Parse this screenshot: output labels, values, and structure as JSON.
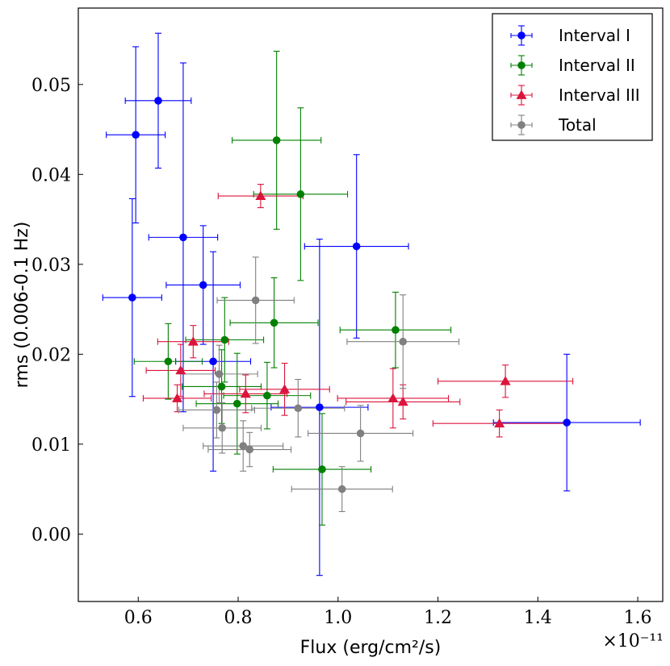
{
  "chart_data": {
    "type": "scatter",
    "title": "",
    "xlabel": "Flux (erg/cm²/s)",
    "ylabel": "rms (0.006-0.1 Hz)",
    "x_multiplier": "×10⁻¹¹",
    "xlim": [
      0.48,
      1.65
    ],
    "ylim": [
      -0.0075,
      0.0585
    ],
    "xticks": [
      0.6,
      0.8,
      1.0,
      1.2,
      1.4,
      1.6
    ],
    "xtick_labels": [
      "0.6",
      "0.8",
      "1.0",
      "1.2",
      "1.4",
      "1.6"
    ],
    "yticks": [
      0.0,
      0.01,
      0.02,
      0.03,
      0.04,
      0.05
    ],
    "ytick_labels": [
      "0.00",
      "0.01",
      "0.02",
      "0.03",
      "0.04",
      "0.05"
    ],
    "grid": false,
    "legend_position": "top-right",
    "series": [
      {
        "name": "Interval I",
        "color": "#0000ff",
        "marker": "circle",
        "points": [
          {
            "x": 0.595,
            "y": 0.0444,
            "xerr": 0.059,
            "yerr": 0.0098
          },
          {
            "x": 0.64,
            "y": 0.0482,
            "xerr": 0.066,
            "yerr": 0.0075
          },
          {
            "x": 0.588,
            "y": 0.0263,
            "xerr": 0.059,
            "yerr": 0.011
          },
          {
            "x": 0.69,
            "y": 0.033,
            "xerr": 0.069,
            "yerr": 0.0194
          },
          {
            "x": 0.73,
            "y": 0.0277,
            "xerr": 0.074,
            "yerr": 0.0066
          },
          {
            "x": 0.75,
            "y": 0.0192,
            "xerr": 0.075,
            "yerr": 0.0122
          },
          {
            "x": 0.963,
            "y": 0.0141,
            "xerr": 0.097,
            "yerr": 0.0187
          },
          {
            "x": 1.037,
            "y": 0.032,
            "xerr": 0.104,
            "yerr": 0.0102
          },
          {
            "x": 1.458,
            "y": 0.0124,
            "xerr": 0.147,
            "yerr": 0.0076
          }
        ]
      },
      {
        "name": "Interval II",
        "color": "#008000",
        "marker": "circle",
        "points": [
          {
            "x": 0.877,
            "y": 0.0438,
            "xerr": 0.089,
            "yerr": 0.0099
          },
          {
            "x": 0.925,
            "y": 0.0378,
            "xerr": 0.094,
            "yerr": 0.0096
          },
          {
            "x": 0.872,
            "y": 0.0235,
            "xerr": 0.088,
            "yerr": 0.005
          },
          {
            "x": 1.115,
            "y": 0.0227,
            "xerr": 0.111,
            "yerr": 0.0042
          },
          {
            "x": 0.66,
            "y": 0.0192,
            "xerr": 0.068,
            "yerr": 0.0042
          },
          {
            "x": 0.773,
            "y": 0.0216,
            "xerr": 0.078,
            "yerr": 0.0047
          },
          {
            "x": 0.767,
            "y": 0.0164,
            "xerr": 0.079,
            "yerr": 0.0041
          },
          {
            "x": 0.798,
            "y": 0.0145,
            "xerr": 0.082,
            "yerr": 0.0056
          },
          {
            "x": 0.858,
            "y": 0.0154,
            "xerr": 0.087,
            "yerr": 0.0037
          },
          {
            "x": 0.968,
            "y": 0.0072,
            "xerr": 0.098,
            "yerr": 0.0062
          }
        ]
      },
      {
        "name": "Interval III",
        "color": "#dc143c",
        "marker": "triangle",
        "points": [
          {
            "x": 0.845,
            "y": 0.0376,
            "xerr": 0.085,
            "yerr": 0.0013
          },
          {
            "x": 0.71,
            "y": 0.0214,
            "xerr": 0.071,
            "yerr": 0.0018
          },
          {
            "x": 0.685,
            "y": 0.0182,
            "xerr": 0.069,
            "yerr": 0.0029
          },
          {
            "x": 0.678,
            "y": 0.0151,
            "xerr": 0.068,
            "yerr": 0.0015
          },
          {
            "x": 0.815,
            "y": 0.0156,
            "xerr": 0.083,
            "yerr": 0.0021
          },
          {
            "x": 0.893,
            "y": 0.0161,
            "xerr": 0.09,
            "yerr": 0.0029
          },
          {
            "x": 1.11,
            "y": 0.0151,
            "xerr": 0.111,
            "yerr": 0.0033
          },
          {
            "x": 1.13,
            "y": 0.0147,
            "xerr": 0.114,
            "yerr": 0.0019
          },
          {
            "x": 1.335,
            "y": 0.017,
            "xerr": 0.135,
            "yerr": 0.0018
          },
          {
            "x": 1.323,
            "y": 0.0123,
            "xerr": 0.133,
            "yerr": 0.0015
          }
        ]
      },
      {
        "name": "Total",
        "color": "#808080",
        "marker": "circle",
        "points": [
          {
            "x": 0.835,
            "y": 0.026,
            "xerr": 0.077,
            "yerr": 0.0048
          },
          {
            "x": 1.13,
            "y": 0.0214,
            "xerr": 0.112,
            "yerr": 0.0052
          },
          {
            "x": 0.762,
            "y": 0.0178,
            "xerr": 0.077,
            "yerr": 0.0032
          },
          {
            "x": 0.757,
            "y": 0.0138,
            "xerr": 0.076,
            "yerr": 0.0031
          },
          {
            "x": 0.768,
            "y": 0.0118,
            "xerr": 0.078,
            "yerr": 0.0028
          },
          {
            "x": 0.92,
            "y": 0.014,
            "xerr": 0.093,
            "yerr": 0.0032
          },
          {
            "x": 1.045,
            "y": 0.0112,
            "xerr": 0.105,
            "yerr": 0.0031
          },
          {
            "x": 0.81,
            "y": 0.0098,
            "xerr": 0.08,
            "yerr": 0.0028
          },
          {
            "x": 0.823,
            "y": 0.0094,
            "xerr": 0.083,
            "yerr": 0.0019
          },
          {
            "x": 1.008,
            "y": 0.005,
            "xerr": 0.101,
            "yerr": 0.0025
          }
        ]
      }
    ]
  }
}
